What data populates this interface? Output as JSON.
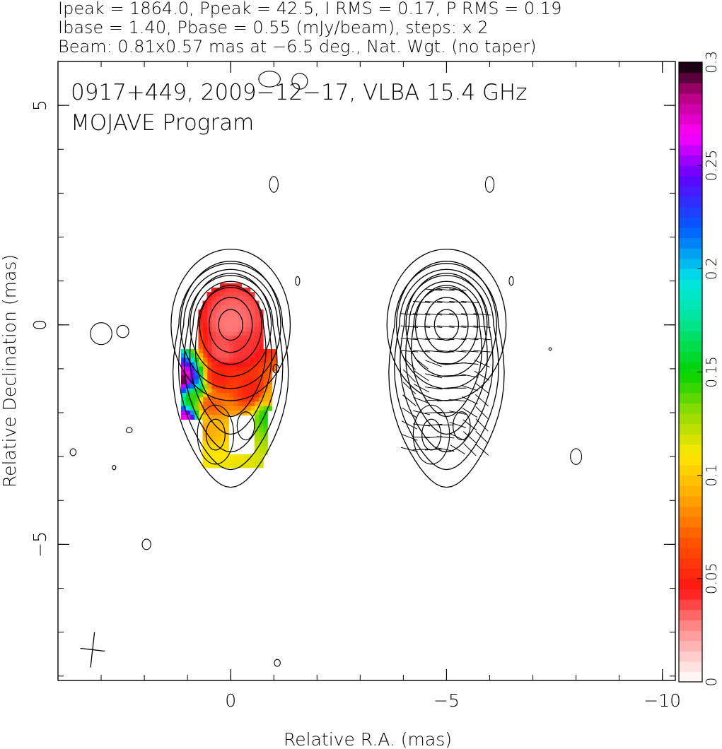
{
  "header": {
    "line1": "Ipeak = 1864.0, Ppeak = 42.5, I RMS = 0.17, P RMS = 0.19",
    "line2": "Ibase = 1.40, Pbase = 0.55 (mJy/beam), steps: x 2",
    "line3": "Beam: 0.81x0.57 mas at −6.5 deg., Nat. Wgt. (no taper)"
  },
  "annotation": {
    "line1": "0917+449, 2009−12−17, VLBA 15.4 GHz",
    "line2": "MOJAVE Program"
  },
  "chart_data": {
    "type": "heatmap",
    "xlabel": "Relative R.A. (mas)",
    "ylabel": "Relative Declination (mas)",
    "xlim": [
      4,
      -10.3
    ],
    "ylim": [
      -8.1,
      6
    ],
    "x_ticks": [
      {
        "value": 0,
        "label": "0"
      },
      {
        "value": -5,
        "label": "−5"
      },
      {
        "value": -10,
        "label": "−10"
      }
    ],
    "y_ticks": [
      {
        "value": 5,
        "label": "5"
      },
      {
        "value": 0,
        "label": "0"
      },
      {
        "value": -5,
        "label": "−5"
      }
    ],
    "colorbar": {
      "range": [
        0,
        0.3
      ],
      "ticks": [
        {
          "value": 0,
          "label": "0"
        },
        {
          "value": 0.05,
          "label": "0.05"
        },
        {
          "value": 0.1,
          "label": "0.1"
        },
        {
          "value": 0.15,
          "label": "0.15"
        },
        {
          "value": 0.2,
          "label": "0.2"
        },
        {
          "value": 0.25,
          "label": "0.25"
        },
        {
          "value": 0.3,
          "label": "0.3"
        }
      ]
    },
    "panels": [
      {
        "name": "left",
        "center_ra": 0,
        "center_dec": 0,
        "map": "fractional polarization color with total intensity contours"
      },
      {
        "name": "right",
        "center_ra": -5,
        "center_dec": 0,
        "map": "total intensity contours with EVPA ticks"
      }
    ],
    "core": {
      "ra": 0,
      "dec": 0
    },
    "contour_levels_mJy": [
      1.4,
      2.8,
      5.6,
      11.2,
      22.4,
      44.8,
      89.6,
      179.2,
      358.4,
      716.8,
      1433.6
    ],
    "beam": {
      "major_mas": 0.81,
      "minor_mas": 0.57,
      "pa_deg": -6.5,
      "ra": 3.2,
      "dec": -7.4
    },
    "polarization_region": [
      {
        "ra": 0.0,
        "dec": 0.0,
        "frac": 0.03
      },
      {
        "ra": 0.2,
        "dec": -0.6,
        "frac": 0.035
      },
      {
        "ra": -0.2,
        "dec": -0.5,
        "frac": 0.04
      },
      {
        "ra": 0.3,
        "dec": -1.2,
        "frac": 0.05
      },
      {
        "ra": -0.5,
        "dec": -1.5,
        "frac": 0.05
      },
      {
        "ra": 0.5,
        "dec": -1.8,
        "frac": 0.07
      },
      {
        "ra": 0.6,
        "dec": -2.4,
        "frac": 0.09
      },
      {
        "ra": 0.8,
        "dec": -2.9,
        "frac": 0.11
      },
      {
        "ra": 0.9,
        "dec": -1.6,
        "frac": 0.14
      },
      {
        "ra": 1.0,
        "dec": -1.4,
        "frac": 0.22
      },
      {
        "ra": 1.1,
        "dec": -1.3,
        "frac": 0.3
      },
      {
        "ra": 1.1,
        "dec": -2.2,
        "frac": 0.27
      },
      {
        "ra": -0.9,
        "dec": -1.7,
        "frac": 0.09
      },
      {
        "ra": -0.9,
        "dec": -2.0,
        "frac": 0.15
      }
    ]
  },
  "colors": {
    "contour": "#000000",
    "background": "#ffffff"
  }
}
